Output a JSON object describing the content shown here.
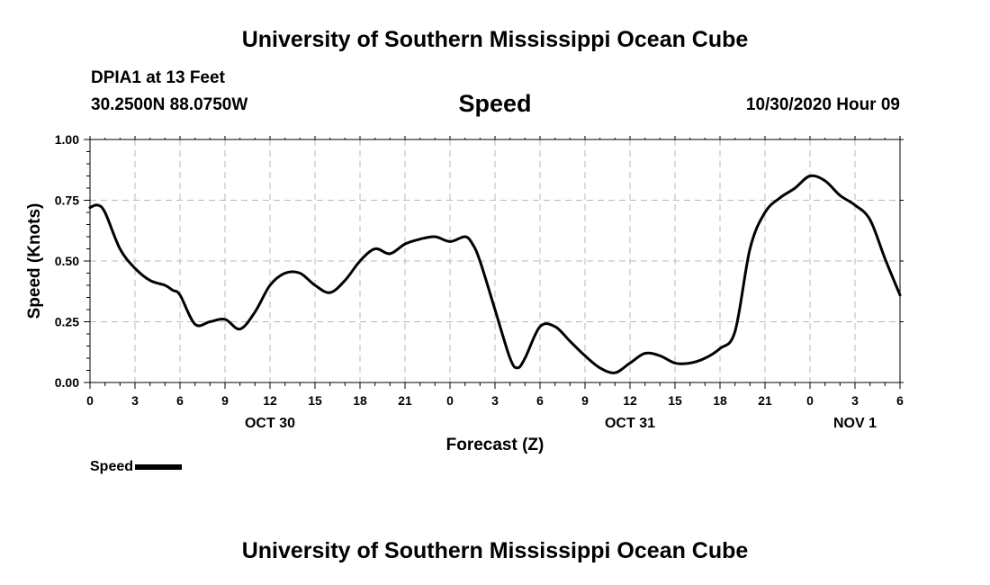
{
  "header": {
    "title": "University of Southern Mississippi Ocean Cube",
    "station": "DPIA1 at 13 Feet",
    "coords": "30.2500N 88.0750W",
    "chart_name": "Speed",
    "run_time": "10/30/2020 Hour 09"
  },
  "footer": {
    "title": "University of Southern Mississippi Ocean Cube"
  },
  "legend": {
    "label": "Speed"
  },
  "colors": {
    "line": "#000000",
    "grid": "#b8b8b8"
  },
  "chart_data": {
    "type": "line",
    "xlabel": "Forecast (Z)",
    "ylabel": "Speed (Knots)",
    "ylim": [
      0,
      1
    ],
    "xlim": [
      0,
      54
    ],
    "grid": true,
    "y_ticks": [
      "0.00",
      "0.25",
      "0.50",
      "0.75",
      "1.00"
    ],
    "x_ticks": [
      "0",
      "3",
      "6",
      "9",
      "12",
      "15",
      "18",
      "21",
      "0",
      "3",
      "6",
      "9",
      "12",
      "15",
      "18",
      "21",
      "0",
      "3",
      "6"
    ],
    "date_labels": [
      {
        "label": "OCT 30",
        "at_hour": 12
      },
      {
        "label": "OCT 31",
        "at_hour": 36
      },
      {
        "label": "NOV 1",
        "at_hour": 51
      }
    ],
    "series": [
      {
        "name": "Speed",
        "x": [
          0,
          0.5,
          1,
          2,
          3,
          4,
          5,
          5.5,
          6,
          7,
          8,
          9,
          10,
          11,
          12,
          13,
          14,
          15,
          16,
          17,
          18,
          19,
          20,
          21,
          22,
          23,
          24,
          25,
          25.5,
          26,
          27,
          28,
          28.5,
          29,
          30,
          31,
          32,
          33,
          34,
          35,
          36,
          37,
          38,
          39,
          40,
          41,
          42,
          43,
          44,
          45,
          46,
          47,
          48,
          49,
          50,
          51,
          52,
          53,
          54
        ],
        "y": [
          0.72,
          0.73,
          0.7,
          0.55,
          0.47,
          0.42,
          0.4,
          0.38,
          0.36,
          0.24,
          0.25,
          0.26,
          0.22,
          0.29,
          0.4,
          0.45,
          0.45,
          0.4,
          0.37,
          0.42,
          0.5,
          0.55,
          0.53,
          0.57,
          0.59,
          0.6,
          0.58,
          0.6,
          0.57,
          0.5,
          0.3,
          0.1,
          0.06,
          0.1,
          0.23,
          0.23,
          0.17,
          0.11,
          0.06,
          0.04,
          0.08,
          0.12,
          0.11,
          0.08,
          0.08,
          0.1,
          0.14,
          0.21,
          0.55,
          0.7,
          0.76,
          0.8,
          0.85,
          0.83,
          0.77,
          0.73,
          0.67,
          0.51,
          0.36
        ]
      }
    ]
  }
}
